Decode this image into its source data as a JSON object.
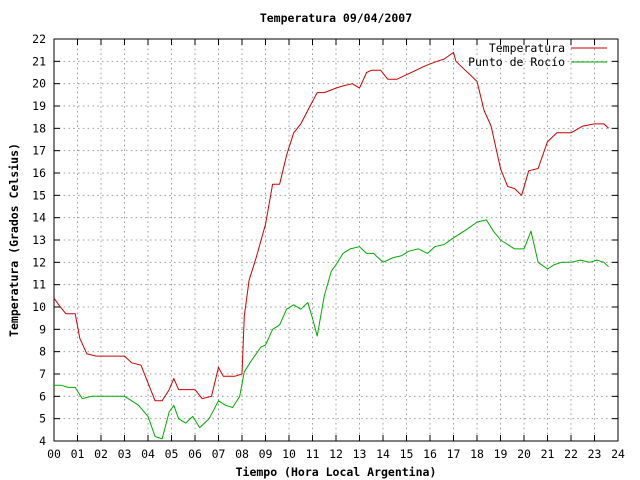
{
  "chart_data": {
    "type": "line",
    "title": "Temperatura 09/04/2007",
    "xlabel": "Tiempo (Hora Local Argentina)",
    "ylabel": "Temperatura (Grados Celsius)",
    "xlim": [
      0,
      24
    ],
    "ylim": [
      4,
      22
    ],
    "xticks": [
      "00",
      "01",
      "02",
      "03",
      "04",
      "05",
      "06",
      "07",
      "08",
      "09",
      "10",
      "11",
      "12",
      "13",
      "14",
      "15",
      "16",
      "17",
      "18",
      "19",
      "20",
      "21",
      "22",
      "23",
      "24"
    ],
    "yticks": [
      4,
      5,
      6,
      7,
      8,
      9,
      10,
      11,
      12,
      13,
      14,
      15,
      16,
      17,
      18,
      19,
      20,
      21,
      22
    ],
    "grid": true,
    "legend_position": "top-right",
    "series": [
      {
        "name": "Temperatura",
        "color": "#cc0000",
        "x": [
          0,
          0.2,
          0.5,
          0.9,
          1.1,
          1.4,
          1.8,
          2.0,
          2.5,
          3.0,
          3.3,
          3.7,
          4.0,
          4.3,
          4.6,
          4.9,
          5.1,
          5.3,
          5.6,
          6.0,
          6.3,
          6.7,
          7.0,
          7.2,
          7.4,
          7.7,
          8.0,
          8.1,
          8.3,
          8.6,
          9.0,
          9.3,
          9.6,
          9.9,
          10.2,
          10.5,
          10.9,
          11.2,
          11.5,
          12.0,
          12.3,
          12.7,
          13.0,
          13.3,
          13.5,
          13.9,
          14.2,
          14.6,
          15.0,
          15.4,
          15.8,
          16.3,
          16.6,
          17.0,
          17.1,
          17.5,
          18.0,
          18.3,
          18.6,
          19.0,
          19.3,
          19.6,
          19.9,
          20.2,
          20.6,
          21.0,
          21.4,
          22.0,
          22.5,
          23.0,
          23.4,
          23.6
        ],
        "y": [
          10.4,
          10.1,
          9.7,
          9.7,
          8.6,
          7.9,
          7.8,
          7.8,
          7.8,
          7.8,
          7.5,
          7.4,
          6.6,
          5.8,
          5.8,
          6.3,
          6.8,
          6.3,
          6.3,
          6.3,
          5.9,
          6.0,
          7.3,
          6.9,
          6.9,
          6.9,
          7.0,
          9.6,
          11.2,
          12.2,
          13.7,
          15.5,
          15.5,
          16.8,
          17.8,
          18.2,
          19.0,
          19.6,
          19.6,
          19.8,
          19.9,
          20.0,
          19.8,
          20.5,
          20.6,
          20.6,
          20.2,
          20.2,
          20.4,
          20.6,
          20.8,
          21.0,
          21.1,
          21.4,
          21.0,
          20.6,
          20.1,
          18.8,
          18.1,
          16.2,
          15.4,
          15.3,
          15.0,
          16.1,
          16.2,
          17.4,
          17.8,
          17.8,
          18.1,
          18.2,
          18.2,
          18.0
        ]
      },
      {
        "name": "Punto de Rocío",
        "color": "#00aa00",
        "x": [
          0,
          0.3,
          0.6,
          0.9,
          1.2,
          1.6,
          2.0,
          2.5,
          3.0,
          3.3,
          3.6,
          4.0,
          4.3,
          4.6,
          4.9,
          5.1,
          5.3,
          5.6,
          5.9,
          6.2,
          6.6,
          7.0,
          7.3,
          7.6,
          7.9,
          8.1,
          8.4,
          8.8,
          9.0,
          9.3,
          9.6,
          9.9,
          10.2,
          10.5,
          10.8,
          11.0,
          11.2,
          11.5,
          11.8,
          12.0,
          12.3,
          12.6,
          13.0,
          13.3,
          13.6,
          14.0,
          14.4,
          14.8,
          15.1,
          15.5,
          15.9,
          16.2,
          16.6,
          17.0,
          17.3,
          17.6,
          18.0,
          18.4,
          18.7,
          19.0,
          19.3,
          19.6,
          20.0,
          20.3,
          20.6,
          21.0,
          21.3,
          21.6,
          22.0,
          22.4,
          22.8,
          23.1,
          23.4,
          23.6
        ],
        "y": [
          6.5,
          6.5,
          6.4,
          6.4,
          5.9,
          6.0,
          6.0,
          6.0,
          6.0,
          5.8,
          5.6,
          5.1,
          4.2,
          4.1,
          5.3,
          5.6,
          5.0,
          4.8,
          5.1,
          4.6,
          5.0,
          5.8,
          5.6,
          5.5,
          6.0,
          7.1,
          7.6,
          8.2,
          8.3,
          9.0,
          9.2,
          9.9,
          10.1,
          9.9,
          10.2,
          9.5,
          8.7,
          10.5,
          11.6,
          11.9,
          12.4,
          12.6,
          12.7,
          12.4,
          12.4,
          12.0,
          12.2,
          12.3,
          12.5,
          12.6,
          12.4,
          12.7,
          12.8,
          13.1,
          13.3,
          13.5,
          13.8,
          13.9,
          13.4,
          13.0,
          12.8,
          12.6,
          12.6,
          13.4,
          12.0,
          11.7,
          11.9,
          12.0,
          12.0,
          12.1,
          12.0,
          12.1,
          12.0,
          11.8
        ]
      }
    ]
  }
}
